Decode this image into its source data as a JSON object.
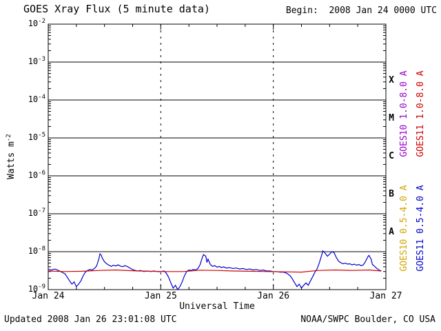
{
  "header": {
    "title": "GOES Xray Flux (5 minute data)",
    "begin": "Begin:  2008 Jan 24 0000 UTC"
  },
  "footer": {
    "updated": "Updated 2008 Jan 26 23:01:08 UTC",
    "source": "NOAA/SWPC Boulder, CO USA"
  },
  "axis": {
    "ylabel_base": "Watts m",
    "ylabel_exp": "-2",
    "xlabel": "Universal Time"
  },
  "legend": [
    {
      "label": "GOES10 1.0-8.0 A",
      "color": "#9900cc"
    },
    {
      "label": "GOES11 1.0-8.0 A",
      "color": "#cc0000"
    },
    {
      "label": "GOES10 0.5-4.0 A",
      "color": "#d2a400"
    },
    {
      "label": "GOES11 0.5-4.0 A",
      "color": "#0000cc"
    }
  ],
  "chart_data": {
    "type": "line",
    "title": "GOES Xray Flux (5 minute data)",
    "xlabel": "Universal Time",
    "ylabel": "Watts m^-2",
    "x_unit": "days since 2008 Jan 24 0000 UTC",
    "x_range": [
      0,
      3
    ],
    "y_log_range": [
      -9,
      -2
    ],
    "x_ticks": [
      {
        "label": "Jan 24",
        "day": 0
      },
      {
        "label": "Jan 25",
        "day": 1
      },
      {
        "label": "Jan 26",
        "day": 2
      },
      {
        "label": "Jan 27",
        "day": 3
      }
    ],
    "y_tick_exponents": [
      -2,
      -3,
      -4,
      -5,
      -6,
      -7,
      -8,
      -9
    ],
    "flare_classes": [
      {
        "label": "X",
        "between_exponents": [
          -4,
          -3
        ]
      },
      {
        "label": "M",
        "between_exponents": [
          -5,
          -4
        ]
      },
      {
        "label": "C",
        "between_exponents": [
          -6,
          -5
        ]
      },
      {
        "label": "B",
        "between_exponents": [
          -7,
          -6
        ]
      },
      {
        "label": "A",
        "between_exponents": [
          -8,
          -7
        ]
      }
    ],
    "day_gridlines": [
      1,
      2
    ],
    "minor_x_tick_days": 0.25,
    "grid": "horizontal solid line per decade, vertical dashed line per day boundary",
    "series": [
      {
        "name": "GOES11 0.5-4.0 A",
        "color": "#0000cc",
        "points": [
          [
            0.0,
            3.4e-09
          ],
          [
            0.03,
            3.3e-09
          ],
          [
            0.06,
            3.5e-09
          ],
          [
            0.09,
            3.2e-09
          ],
          [
            0.12,
            2.9e-09
          ],
          [
            0.15,
            2.6e-09
          ],
          [
            0.17,
            2.1e-09
          ],
          [
            0.19,
            1.7e-09
          ],
          [
            0.21,
            1.4e-09
          ],
          [
            0.23,
            1.6e-09
          ],
          [
            0.25,
            1.2e-09
          ],
          [
            0.27,
            1.4e-09
          ],
          [
            0.29,
            1.7e-09
          ],
          [
            0.31,
            2.3e-09
          ],
          [
            0.33,
            2.9e-09
          ],
          [
            0.35,
            3.2e-09
          ],
          [
            0.37,
            3.4e-09
          ],
          [
            0.39,
            3.3e-09
          ],
          [
            0.41,
            3.6e-09
          ],
          [
            0.43,
            4.2e-09
          ],
          [
            0.45,
            6.5e-09
          ],
          [
            0.46,
            8.8e-09
          ],
          [
            0.47,
            8.2e-09
          ],
          [
            0.48,
            6.8e-09
          ],
          [
            0.5,
            5.4e-09
          ],
          [
            0.52,
            4.8e-09
          ],
          [
            0.54,
            4.4e-09
          ],
          [
            0.56,
            4.1e-09
          ],
          [
            0.58,
            4.4e-09
          ],
          [
            0.6,
            4.2e-09
          ],
          [
            0.62,
            4.5e-09
          ],
          [
            0.64,
            4.2e-09
          ],
          [
            0.66,
            4e-09
          ],
          [
            0.68,
            4.3e-09
          ],
          [
            0.7,
            4.1e-09
          ],
          [
            0.72,
            3.8e-09
          ],
          [
            0.74,
            3.5e-09
          ],
          [
            0.76,
            3.3e-09
          ],
          [
            0.79,
            3.1e-09
          ],
          [
            0.82,
            3.2e-09
          ],
          [
            0.85,
            3e-09
          ],
          [
            0.88,
            3.1e-09
          ],
          [
            0.91,
            3e-09
          ],
          [
            0.94,
            3.1e-09
          ],
          [
            0.97,
            3e-09
          ],
          [
            1.0,
            3e-09
          ],
          [
            1.03,
            3.1e-09
          ],
          [
            1.05,
            2.7e-09
          ],
          [
            1.07,
            2.1e-09
          ],
          [
            1.09,
            1.5e-09
          ],
          [
            1.11,
            1.1e-09
          ],
          [
            1.13,
            1.3e-09
          ],
          [
            1.15,
            1e-09
          ],
          [
            1.17,
            1.2e-09
          ],
          [
            1.19,
            1.6e-09
          ],
          [
            1.21,
            2.3e-09
          ],
          [
            1.23,
            3e-09
          ],
          [
            1.25,
            3.3e-09
          ],
          [
            1.27,
            3.2e-09
          ],
          [
            1.29,
            3.4e-09
          ],
          [
            1.31,
            3.3e-09
          ],
          [
            1.33,
            3.6e-09
          ],
          [
            1.35,
            4.6e-09
          ],
          [
            1.37,
            7.2e-09
          ],
          [
            1.38,
            8.4e-09
          ],
          [
            1.4,
            7.6e-09
          ],
          [
            1.41,
            5.2e-09
          ],
          [
            1.42,
            6.4e-09
          ],
          [
            1.44,
            4.6e-09
          ],
          [
            1.46,
            4.1e-09
          ],
          [
            1.48,
            4.3e-09
          ],
          [
            1.5,
            3.9e-09
          ],
          [
            1.52,
            4.1e-09
          ],
          [
            1.54,
            3.8e-09
          ],
          [
            1.56,
            4e-09
          ],
          [
            1.58,
            3.7e-09
          ],
          [
            1.61,
            3.8e-09
          ],
          [
            1.64,
            3.6e-09
          ],
          [
            1.67,
            3.7e-09
          ],
          [
            1.7,
            3.5e-09
          ],
          [
            1.73,
            3.6e-09
          ],
          [
            1.76,
            3.4e-09
          ],
          [
            1.79,
            3.5e-09
          ],
          [
            1.82,
            3.3e-09
          ],
          [
            1.85,
            3.4e-09
          ],
          [
            1.88,
            3.2e-09
          ],
          [
            1.91,
            3.3e-09
          ],
          [
            1.94,
            3.1e-09
          ],
          [
            1.97,
            3.1e-09
          ],
          [
            2.0,
            3e-09
          ],
          [
            2.03,
            3e-09
          ],
          [
            2.06,
            2.9e-09
          ],
          [
            2.09,
            2.9e-09
          ],
          [
            2.12,
            2.7e-09
          ],
          [
            2.15,
            2.3e-09
          ],
          [
            2.17,
            1.9e-09
          ],
          [
            2.19,
            1.5e-09
          ],
          [
            2.21,
            1.2e-09
          ],
          [
            2.23,
            1.4e-09
          ],
          [
            2.25,
            1.1e-09
          ],
          [
            2.27,
            1.3e-09
          ],
          [
            2.29,
            1.5e-09
          ],
          [
            2.31,
            1.3e-09
          ],
          [
            2.33,
            1.7e-09
          ],
          [
            2.35,
            2.2e-09
          ],
          [
            2.37,
            2.9e-09
          ],
          [
            2.39,
            3.6e-09
          ],
          [
            2.41,
            5.2e-09
          ],
          [
            2.43,
            8.2e-09
          ],
          [
            2.44,
            1.05e-08
          ],
          [
            2.46,
            9.2e-09
          ],
          [
            2.48,
            7.6e-09
          ],
          [
            2.5,
            8.6e-09
          ],
          [
            2.52,
            1e-08
          ],
          [
            2.54,
            9.4e-09
          ],
          [
            2.56,
            7e-09
          ],
          [
            2.58,
            5.6e-09
          ],
          [
            2.6,
            5.1e-09
          ],
          [
            2.62,
            4.8e-09
          ],
          [
            2.64,
            5e-09
          ],
          [
            2.66,
            4.7e-09
          ],
          [
            2.68,
            4.8e-09
          ],
          [
            2.7,
            4.5e-09
          ],
          [
            2.72,
            4.7e-09
          ],
          [
            2.74,
            4.4e-09
          ],
          [
            2.76,
            4.6e-09
          ],
          [
            2.78,
            4.3e-09
          ],
          [
            2.8,
            4.5e-09
          ],
          [
            2.82,
            5.6e-09
          ],
          [
            2.84,
            7.4e-09
          ],
          [
            2.85,
            8e-09
          ],
          [
            2.87,
            6.2e-09
          ],
          [
            2.88,
            4.6e-09
          ],
          [
            2.9,
            4.1e-09
          ],
          [
            2.92,
            3.6e-09
          ],
          [
            2.94,
            3.3e-09
          ],
          [
            2.96,
            3.1e-09
          ]
        ]
      },
      {
        "name": "GOES11 1.0-8.0 A",
        "color": "#cc0000",
        "points": [
          [
            0.0,
            3.1e-09
          ],
          [
            0.15,
            3e-09
          ],
          [
            0.3,
            3.05e-09
          ],
          [
            0.45,
            3.2e-09
          ],
          [
            0.6,
            3.3e-09
          ],
          [
            0.75,
            3.15e-09
          ],
          [
            0.9,
            3.05e-09
          ],
          [
            1.05,
            3e-09
          ],
          [
            1.2,
            3e-09
          ],
          [
            1.35,
            3.25e-09
          ],
          [
            1.5,
            3.2e-09
          ],
          [
            1.65,
            3.1e-09
          ],
          [
            1.8,
            3.05e-09
          ],
          [
            1.95,
            3e-09
          ],
          [
            2.1,
            2.95e-09
          ],
          [
            2.25,
            2.9e-09
          ],
          [
            2.4,
            3.2e-09
          ],
          [
            2.55,
            3.3e-09
          ],
          [
            2.7,
            3.2e-09
          ],
          [
            2.85,
            3.3e-09
          ],
          [
            2.96,
            3.1e-09
          ]
        ]
      },
      {
        "name": "GOES10 1.0-8.0 A",
        "color": "#9900cc",
        "points": []
      },
      {
        "name": "GOES10 0.5-4.0 A",
        "color": "#d2a400",
        "points": []
      }
    ]
  }
}
